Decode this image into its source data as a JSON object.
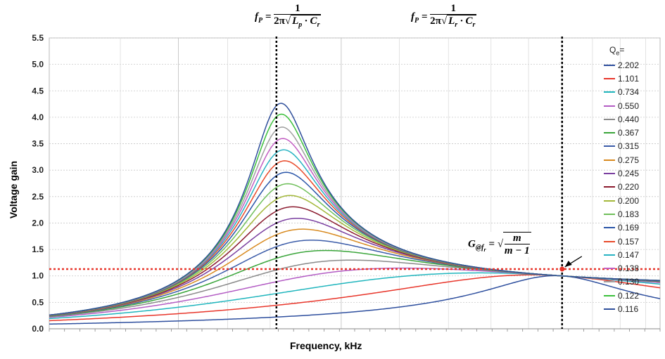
{
  "chart_data": {
    "type": "line",
    "xlabel": "Frequency, kHz",
    "ylabel": "Voltage gain",
    "ylim": [
      0,
      5.5
    ],
    "yticks": [
      "0.0",
      "0.5",
      "1.0",
      "1.5",
      "2.0",
      "2.5",
      "3.0",
      "3.5",
      "4.0",
      "4.5",
      "5.0",
      "5.5"
    ],
    "x_scale": "log",
    "grid": true,
    "legend_title": "Q",
    "legend_title_sub": "e",
    "legend_title_suffix": "=",
    "legend_placement": "right",
    "parameters": {
      "m": 6,
      "peak_x": 0.408,
      "fr_x": 1.0,
      "x_range": [
        0.2,
        1.36
      ]
    },
    "series": [
      {
        "name": "2.202",
        "Q": 2.202,
        "color": "#2e4f9e"
      },
      {
        "name": "1.101",
        "Q": 1.101,
        "color": "#e8352a"
      },
      {
        "name": "0.734",
        "Q": 0.734,
        "color": "#1fb5bd"
      },
      {
        "name": "0.550",
        "Q": 0.55,
        "color": "#b35cc4"
      },
      {
        "name": "0.440",
        "Q": 0.44,
        "color": "#8a8a8a"
      },
      {
        "name": "0.367",
        "Q": 0.367,
        "color": "#3aa53a"
      },
      {
        "name": "0.315",
        "Q": 0.315,
        "color": "#3a5ba8"
      },
      {
        "name": "0.275",
        "Q": 0.275,
        "color": "#d88a1f"
      },
      {
        "name": "0.245",
        "Q": 0.245,
        "color": "#7a3fa0"
      },
      {
        "name": "0.220",
        "Q": 0.22,
        "color": "#8b1a2e"
      },
      {
        "name": "0.200",
        "Q": 0.2,
        "color": "#a3b83a"
      },
      {
        "name": "0.183",
        "Q": 0.183,
        "color": "#6fbf5a"
      },
      {
        "name": "0.169",
        "Q": 0.169,
        "color": "#2a55a8"
      },
      {
        "name": "0.157",
        "Q": 0.157,
        "color": "#e84a2a"
      },
      {
        "name": "0.147",
        "Q": 0.147,
        "color": "#28b3c3"
      },
      {
        "name": "0.138",
        "Q": 0.138,
        "color": "#c25ec2"
      },
      {
        "name": "0.130",
        "Q": 0.13,
        "color": "#a0a0a0"
      },
      {
        "name": "0.122",
        "Q": 0.122,
        "color": "#3cc03c"
      },
      {
        "name": "0.116",
        "Q": 0.116,
        "color": "#2f4f9b"
      }
    ],
    "annotations": {
      "fp_left": {
        "lhs": "f",
        "sub": "P",
        "eq": " = ",
        "num": "1",
        "den_pre": "2π",
        "den_rad": "L",
        "den_sub": "p",
        "den_post": " · C",
        "den_sub2": "r"
      },
      "fp_right": {
        "lhs": "f",
        "sub": "P",
        "eq": " = ",
        "num": "1",
        "den_pre": "2π",
        "den_rad": "L",
        "den_sub": "r",
        "den_post": " · C",
        "den_sub2": "r"
      },
      "gain": {
        "lhs": "G",
        "sub": "@f",
        "subsub": "r",
        "eq": " = ",
        "num": "m",
        "den": "m − 1"
      },
      "gain_line_y": 1.13
    }
  }
}
